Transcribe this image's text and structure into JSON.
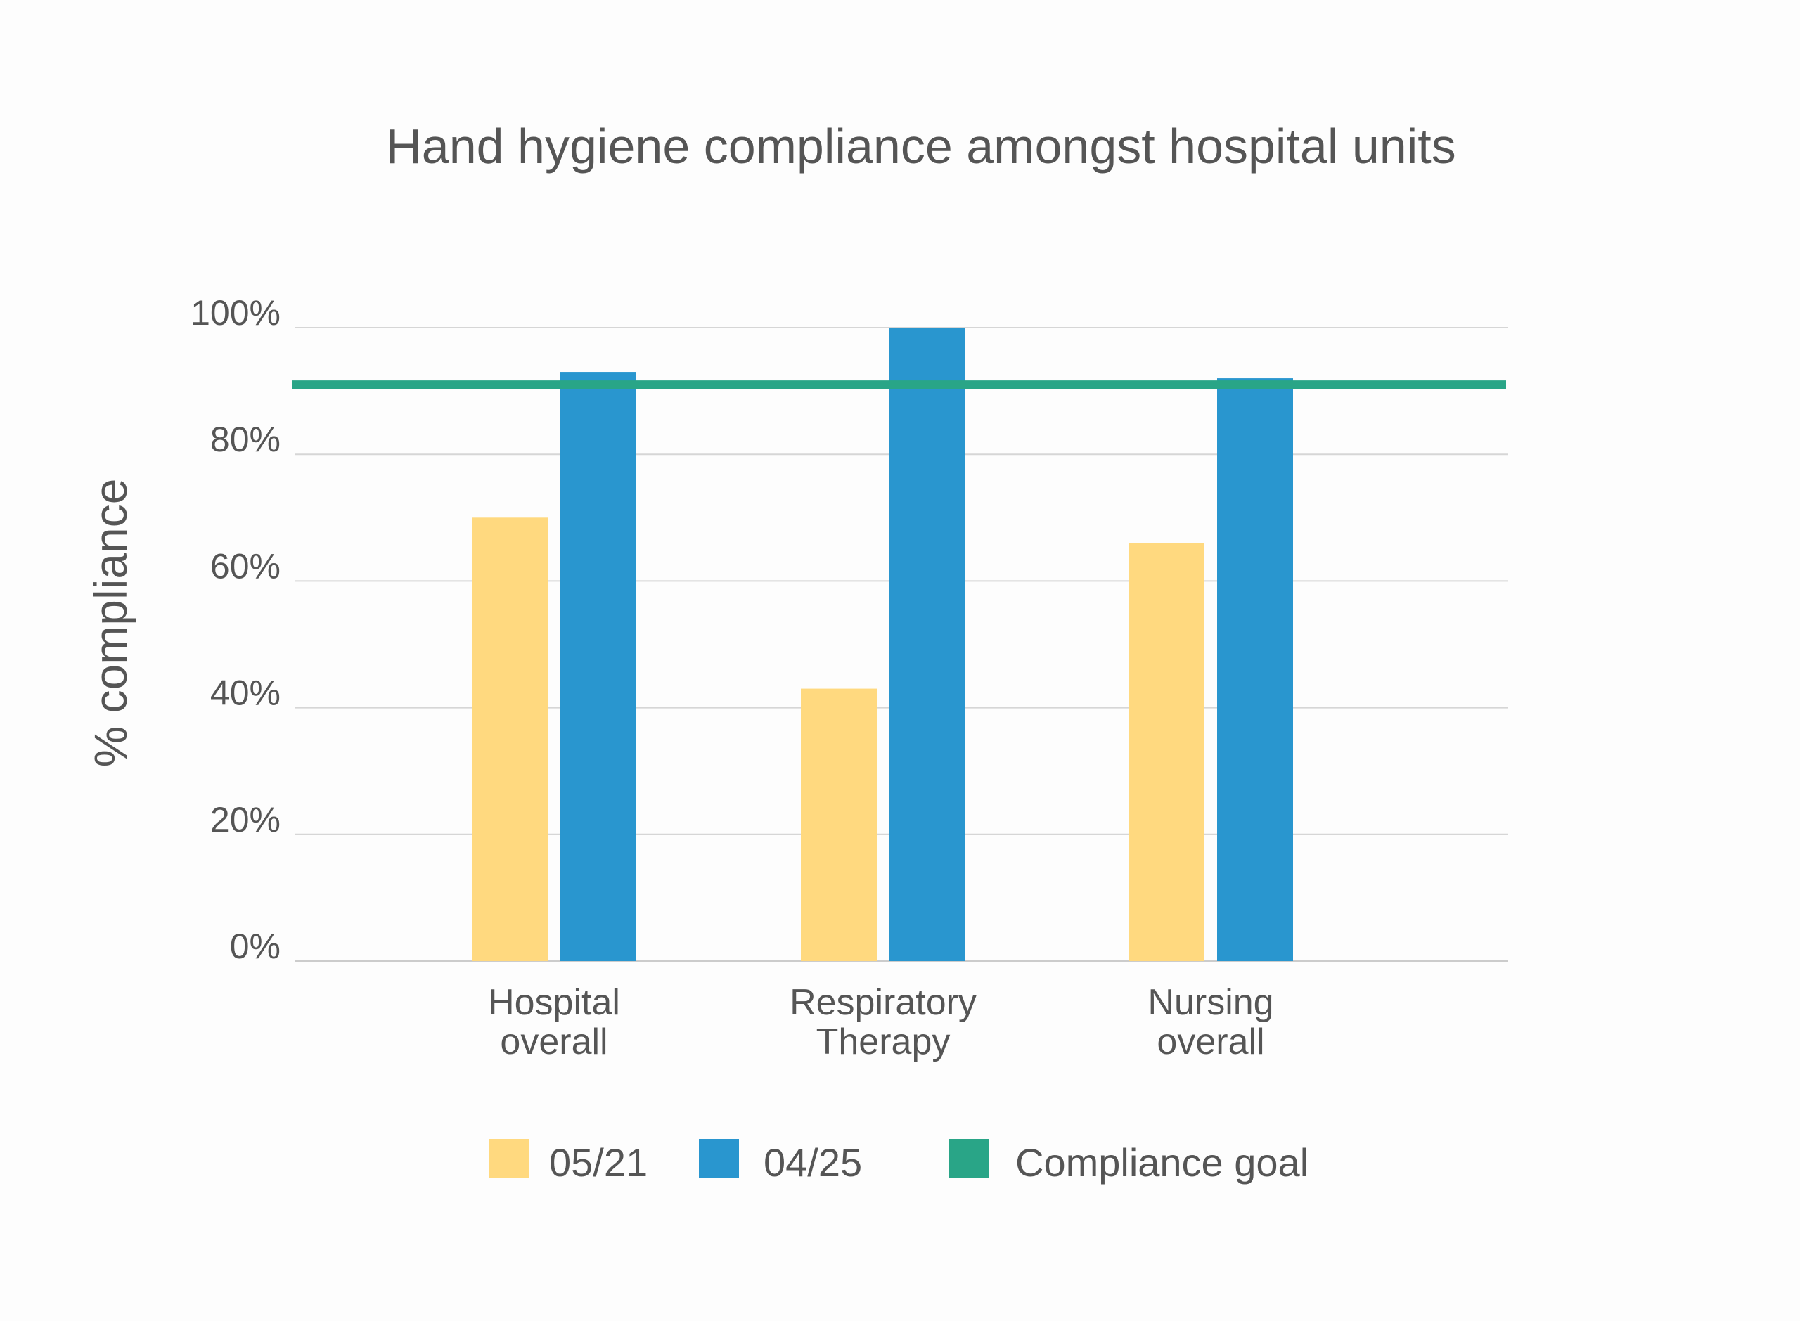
{
  "chart_data": {
    "type": "bar",
    "title": "Hand hygiene compliance amongst hospital units",
    "xlabel": "",
    "ylabel": "% compliance",
    "ylim": [
      0,
      100
    ],
    "yticks": [
      "0%",
      "20%",
      "40%",
      "60%",
      "80%",
      "100%"
    ],
    "ytick_values": [
      0,
      20,
      40,
      60,
      80,
      100
    ],
    "grid": true,
    "categories": [
      [
        "Hospital",
        "overall"
      ],
      [
        "Respiratory",
        "Therapy"
      ],
      [
        "Nursing",
        "overall"
      ]
    ],
    "series": [
      {
        "name": "05/21",
        "color": "#FFD97F",
        "values": [
          70,
          43,
          66
        ]
      },
      {
        "name": "04/25",
        "color": "#2996CF",
        "values": [
          93,
          100,
          92
        ]
      }
    ],
    "reference_line": {
      "name": "Compliance goal",
      "value": 91,
      "color": "#29A587"
    },
    "legend_position": "bottom"
  }
}
